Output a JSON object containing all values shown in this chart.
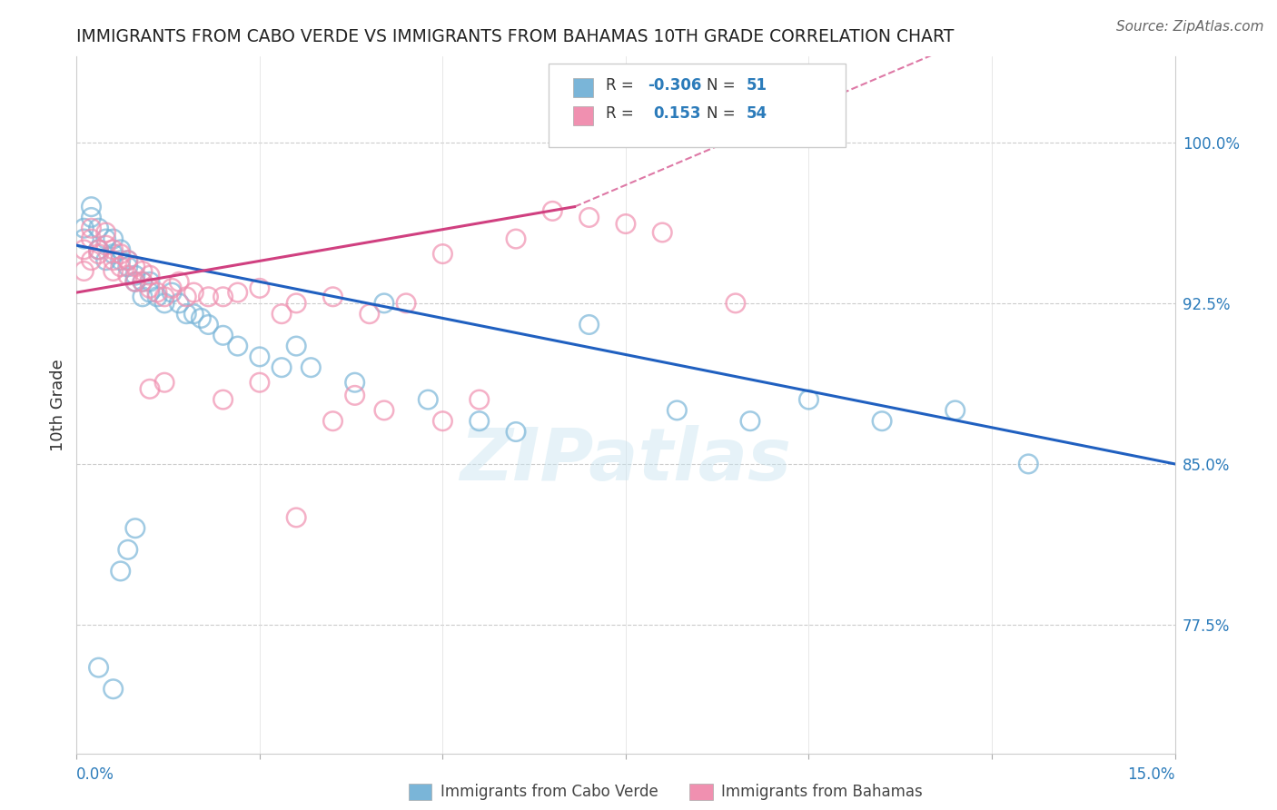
{
  "title": "IMMIGRANTS FROM CABO VERDE VS IMMIGRANTS FROM BAHAMAS 10TH GRADE CORRELATION CHART",
  "source": "Source: ZipAtlas.com",
  "ylabel": "10th Grade",
  "y_ticks": [
    0.775,
    0.85,
    0.925,
    1.0
  ],
  "y_tick_labels": [
    "77.5%",
    "85.0%",
    "92.5%",
    "100.0%"
  ],
  "xlim": [
    0.0,
    0.15
  ],
  "ylim": [
    0.715,
    1.04
  ],
  "cabo_verde_x": [
    0.001,
    0.001,
    0.002,
    0.002,
    0.003,
    0.003,
    0.004,
    0.004,
    0.005,
    0.005,
    0.006,
    0.006,
    0.007,
    0.007,
    0.008,
    0.008,
    0.009,
    0.009,
    0.01,
    0.01,
    0.011,
    0.012,
    0.013,
    0.014,
    0.015,
    0.016,
    0.017,
    0.018,
    0.02,
    0.022,
    0.025,
    0.028,
    0.03,
    0.032,
    0.038,
    0.042,
    0.048,
    0.055,
    0.06,
    0.07,
    0.082,
    0.092,
    0.1,
    0.11,
    0.12,
    0.13,
    0.003,
    0.005,
    0.006,
    0.007,
    0.008
  ],
  "cabo_verde_y": [
    0.955,
    0.96,
    0.97,
    0.965,
    0.96,
    0.95,
    0.955,
    0.945,
    0.955,
    0.948,
    0.945,
    0.95,
    0.945,
    0.942,
    0.938,
    0.935,
    0.935,
    0.928,
    0.935,
    0.93,
    0.928,
    0.925,
    0.93,
    0.925,
    0.92,
    0.92,
    0.918,
    0.915,
    0.91,
    0.905,
    0.9,
    0.895,
    0.905,
    0.895,
    0.888,
    0.925,
    0.88,
    0.87,
    0.865,
    0.915,
    0.875,
    0.87,
    0.88,
    0.87,
    0.875,
    0.85,
    0.755,
    0.745,
    0.8,
    0.81,
    0.82
  ],
  "bahamas_x": [
    0.001,
    0.001,
    0.002,
    0.002,
    0.002,
    0.003,
    0.003,
    0.004,
    0.004,
    0.005,
    0.005,
    0.005,
    0.006,
    0.006,
    0.007,
    0.007,
    0.008,
    0.008,
    0.009,
    0.009,
    0.01,
    0.01,
    0.011,
    0.012,
    0.013,
    0.014,
    0.015,
    0.016,
    0.018,
    0.02,
    0.022,
    0.025,
    0.028,
    0.03,
    0.035,
    0.04,
    0.045,
    0.05,
    0.06,
    0.065,
    0.07,
    0.075,
    0.08,
    0.09,
    0.01,
    0.012,
    0.02,
    0.025,
    0.03,
    0.035,
    0.038,
    0.042,
    0.05,
    0.055
  ],
  "bahamas_y": [
    0.95,
    0.94,
    0.955,
    0.945,
    0.96,
    0.95,
    0.948,
    0.958,
    0.952,
    0.945,
    0.95,
    0.94,
    0.948,
    0.942,
    0.945,
    0.938,
    0.942,
    0.935,
    0.94,
    0.935,
    0.932,
    0.938,
    0.93,
    0.928,
    0.932,
    0.935,
    0.928,
    0.93,
    0.928,
    0.928,
    0.93,
    0.932,
    0.92,
    0.925,
    0.928,
    0.92,
    0.925,
    0.948,
    0.955,
    0.968,
    0.965,
    0.962,
    0.958,
    0.925,
    0.885,
    0.888,
    0.88,
    0.888,
    0.825,
    0.87,
    0.882,
    0.875,
    0.87,
    0.88
  ],
  "blue_color": "#7ab5d8",
  "pink_color": "#f090b0",
  "blue_line_color": "#2060c0",
  "pink_line_color": "#d04080",
  "watermark": "ZIPatlas",
  "background_color": "#ffffff",
  "legend_blue_R": "-0.306",
  "legend_blue_N": "51",
  "legend_pink_R": "0.153",
  "legend_pink_N": "54"
}
